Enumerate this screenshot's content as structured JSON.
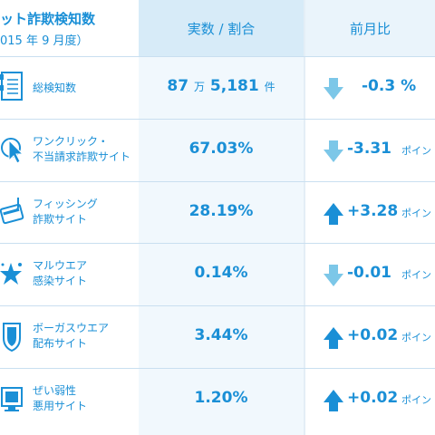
{
  "header": {
    "title": "ット詐欺検知数",
    "subtitle": "015 年 9 月度）",
    "col_value": "実数 / 割合",
    "col_change": "前月比"
  },
  "rows": [
    {
      "icon": "document-list-icon",
      "label1": "総検知数",
      "label2": "",
      "value_main": "87",
      "value_unit1": "万",
      "value_rest": "5,181",
      "value_unit2": "件",
      "trend": "down",
      "change": "-0.3 %",
      "change_unit": ""
    },
    {
      "icon": "cursor-click-icon",
      "label1": "ワンクリック・",
      "label2": "不当請求詐欺サイト",
      "value_main": "67.03%",
      "trend": "down",
      "change": "-3.31",
      "change_unit": "ポイン"
    },
    {
      "icon": "credit-card-hook-icon",
      "label1": "フィッシング",
      "label2": "詐欺サイト",
      "value_main": "28.19%",
      "trend": "up",
      "change": "+3.28",
      "change_unit": "ポイン"
    },
    {
      "icon": "virus-star-icon",
      "label1": "マルウエア",
      "label2": "感染サイト",
      "value_main": "0.14%",
      "trend": "down",
      "change": "-0.01",
      "change_unit": "ポイン"
    },
    {
      "icon": "shield-warning-icon",
      "label1": "ボーガスウエア",
      "label2": "配布サイト",
      "value_main": "3.44%",
      "trend": "up",
      "change": "+0.02",
      "change_unit": "ポイン"
    },
    {
      "icon": "monitor-icon",
      "label1": "ぜい弱性",
      "label2": "悪用サイト",
      "value_main": "1.20%",
      "trend": "up",
      "change": "+0.02",
      "change_unit": "ポイン"
    }
  ],
  "colors": {
    "accent": "#1a8fd6",
    "down_arrow": "#7cc7e8",
    "up_arrow": "#1a8fd6"
  }
}
